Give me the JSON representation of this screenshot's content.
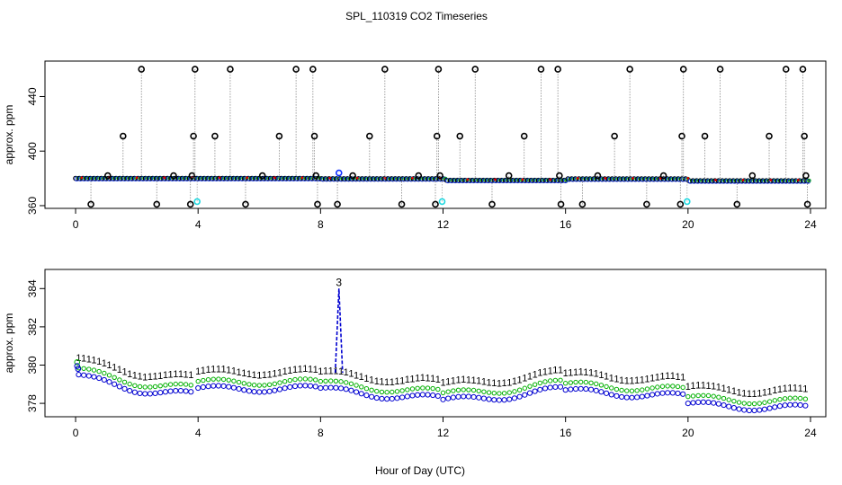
{
  "chart_data": [
    {
      "type": "scatter",
      "title": "SPL_110319  CO2 Timeseries",
      "xlabel": "",
      "ylabel": "approx. ppm",
      "xlim": [
        -1,
        24.5
      ],
      "ylim": [
        358,
        466
      ],
      "xticks": [
        "0",
        "4",
        "8",
        "12",
        "16",
        "20",
        "24"
      ],
      "yticks": [
        "360",
        "400",
        "440"
      ],
      "baseline_ppm": 380,
      "level_changes": [
        {
          "x": 8.0,
          "value": 379.7
        },
        {
          "x": 12.0,
          "value": 378.6
        },
        {
          "x": 16.0,
          "value": 379.6
        },
        {
          "x": 20.0,
          "value": 378.2
        },
        {
          "x": 24.0,
          "value": 377.8
        }
      ],
      "outliers": [
        {
          "x": 0.5,
          "y": 361
        },
        {
          "x": 1.05,
          "y": 382
        },
        {
          "x": 1.55,
          "y": 411
        },
        {
          "x": 2.15,
          "y": 460
        },
        {
          "x": 2.65,
          "y": 361
        },
        {
          "x": 3.2,
          "y": 382
        },
        {
          "x": 3.75,
          "y": 361
        },
        {
          "x": 3.8,
          "y": 382
        },
        {
          "x": 3.85,
          "y": 411
        },
        {
          "x": 3.9,
          "y": 460
        },
        {
          "x": 4.55,
          "y": 411
        },
        {
          "x": 5.05,
          "y": 460
        },
        {
          "x": 5.55,
          "y": 361
        },
        {
          "x": 6.1,
          "y": 382
        },
        {
          "x": 6.65,
          "y": 411
        },
        {
          "x": 7.2,
          "y": 460
        },
        {
          "x": 7.75,
          "y": 460
        },
        {
          "x": 7.8,
          "y": 411
        },
        {
          "x": 7.85,
          "y": 382
        },
        {
          "x": 7.9,
          "y": 361
        },
        {
          "x": 8.55,
          "y": 361
        },
        {
          "x": 9.05,
          "y": 382
        },
        {
          "x": 9.6,
          "y": 411
        },
        {
          "x": 10.1,
          "y": 460
        },
        {
          "x": 10.65,
          "y": 361
        },
        {
          "x": 11.2,
          "y": 382
        },
        {
          "x": 11.75,
          "y": 361
        },
        {
          "x": 11.8,
          "y": 411
        },
        {
          "x": 11.85,
          "y": 460
        },
        {
          "x": 11.9,
          "y": 382
        },
        {
          "x": 12.55,
          "y": 411
        },
        {
          "x": 13.05,
          "y": 460
        },
        {
          "x": 13.6,
          "y": 361
        },
        {
          "x": 14.15,
          "y": 382
        },
        {
          "x": 14.65,
          "y": 411
        },
        {
          "x": 15.2,
          "y": 460
        },
        {
          "x": 15.75,
          "y": 460
        },
        {
          "x": 15.8,
          "y": 382
        },
        {
          "x": 15.85,
          "y": 361
        },
        {
          "x": 16.55,
          "y": 361
        },
        {
          "x": 17.05,
          "y": 382
        },
        {
          "x": 17.6,
          "y": 411
        },
        {
          "x": 18.1,
          "y": 460
        },
        {
          "x": 18.65,
          "y": 361
        },
        {
          "x": 19.2,
          "y": 382
        },
        {
          "x": 19.75,
          "y": 361
        },
        {
          "x": 19.8,
          "y": 411
        },
        {
          "x": 19.85,
          "y": 460
        },
        {
          "x": 20.55,
          "y": 411
        },
        {
          "x": 21.05,
          "y": 460
        },
        {
          "x": 21.6,
          "y": 361
        },
        {
          "x": 22.1,
          "y": 382
        },
        {
          "x": 22.65,
          "y": 411
        },
        {
          "x": 23.2,
          "y": 460
        },
        {
          "x": 23.75,
          "y": 460
        },
        {
          "x": 23.8,
          "y": 411
        },
        {
          "x": 23.85,
          "y": 382
        },
        {
          "x": 23.9,
          "y": 361
        }
      ],
      "special_points": [
        {
          "x": 8.6,
          "y": 384,
          "color": "blue"
        },
        {
          "x": 3.97,
          "y": 363,
          "color": "cyan"
        },
        {
          "x": 11.97,
          "y": 363,
          "color": "cyan"
        },
        {
          "x": 19.97,
          "y": 363,
          "color": "cyan"
        }
      ]
    },
    {
      "type": "scatter",
      "title": "",
      "xlabel": "Hour of Day (UTC)",
      "ylabel": "approx. ppm",
      "xlim": [
        -1,
        24.5
      ],
      "ylim": [
        377.3,
        385
      ],
      "xticks": [
        "0",
        "4",
        "8",
        "12",
        "16",
        "20",
        "24"
      ],
      "yticks": [
        "378",
        "380",
        "382",
        "384"
      ],
      "step_hours": 0.1667,
      "series": [
        {
          "name": "series-1-red",
          "marker": "1",
          "color": "#e00000",
          "offset": 0.9
        },
        {
          "name": "series-2-green",
          "marker": "2",
          "color": "#00b000",
          "offset": 0.35
        },
        {
          "name": "series-3-blue",
          "marker": "3",
          "color": "#0000d0",
          "offset": 0.0
        }
      ],
      "segments": [
        {
          "x_start": 0.1,
          "x_end": 3.9,
          "start": 379.5,
          "end": 378.5,
          "min": 378.5
        },
        {
          "x_start": 4.0,
          "x_end": 7.9,
          "start": 378.8,
          "end": 378.8,
          "min": 378.7
        },
        {
          "x_start": 8.0,
          "x_end": 11.9,
          "start": 378.8,
          "end": 378.3,
          "min": 378.3
        },
        {
          "x_start": 12.0,
          "x_end": 15.9,
          "start": 378.2,
          "end": 378.8,
          "min": 378.2
        },
        {
          "x_start": 16.0,
          "x_end": 19.9,
          "start": 378.7,
          "end": 378.4,
          "min": 378.4
        },
        {
          "x_start": 20.0,
          "x_end": 23.9,
          "start": 378.0,
          "end": 377.8,
          "min": 377.7
        }
      ],
      "initial_points": [
        {
          "x": 0.05,
          "y": 380.15,
          "series": "green"
        },
        {
          "x": 0.05,
          "y": 379.95,
          "series": "blue"
        },
        {
          "x": 0.08,
          "y": 379.8,
          "series": "blue"
        }
      ],
      "spike": {
        "x": 8.6,
        "y": 384.0,
        "label": "3",
        "base": 379.6
      }
    }
  ]
}
